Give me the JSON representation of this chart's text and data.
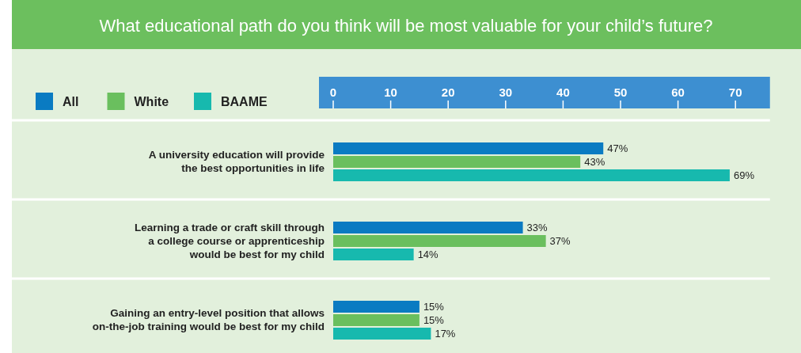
{
  "chart_data": {
    "type": "bar",
    "orientation": "horizontal",
    "title": "What educational path do you think will be most valuable for your child’s future?",
    "categories": [
      "A university education will provide\nthe best opportunities in life",
      "Learning a trade or craft skill through\na college course or apprenticeship\nwould be best for my child",
      "Gaining an entry-level position that allows\non-the-job training would be best for my child"
    ],
    "series": [
      {
        "name": "All",
        "color": "#0a7bc2",
        "values": [
          47,
          33,
          15
        ],
        "value_labels": [
          "47%",
          "33%",
          "15%"
        ]
      },
      {
        "name": "White",
        "color": "#6abf5e",
        "values": [
          43,
          37,
          15
        ],
        "value_labels": [
          "43%",
          "37%",
          "15%"
        ]
      },
      {
        "name": "BAAME",
        "color": "#17b9ae",
        "values": [
          69,
          14,
          17
        ],
        "value_labels": [
          "69%",
          "14%",
          "17%"
        ]
      }
    ],
    "xlim": [
      0,
      76
    ],
    "xticks": [
      0,
      10,
      20,
      30,
      40,
      50,
      60,
      70
    ],
    "legend": "top left",
    "grid": false
  }
}
